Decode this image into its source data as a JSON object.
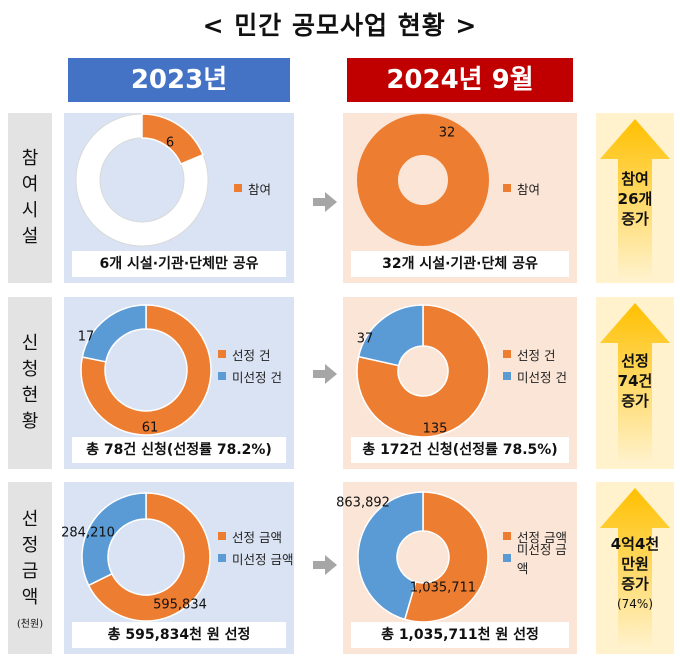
{
  "title": "< 민간 공모사업 현황 >",
  "years": {
    "left": "2023년",
    "right": "2024년 9월"
  },
  "colors": {
    "orange": "#ed7d31",
    "blue": "#5b9bd5",
    "ring_empty": "#ffffff",
    "ring_outline": "#d9d9d9"
  },
  "rows": [
    {
      "label_chars": [
        "참",
        "여",
        "시",
        "설"
      ],
      "unit": ""
    },
    {
      "label_chars": [
        "신",
        "청",
        "현",
        "황"
      ],
      "unit": ""
    },
    {
      "label_chars": [
        "선",
        "정",
        "금",
        "액"
      ],
      "unit": "(천원)"
    }
  ],
  "chart_data": [
    {
      "type": "pie",
      "row": 0,
      "year": "2023년",
      "categories": [
        "참여"
      ],
      "values": [
        6
      ],
      "label_texts": [
        "6"
      ],
      "caption": "6개 시설·기관·단체만 공유",
      "legend": [
        "참여"
      ]
    },
    {
      "type": "pie",
      "row": 0,
      "year": "2024년 9월",
      "categories": [
        "참여"
      ],
      "values": [
        32
      ],
      "label_texts": [
        "32"
      ],
      "caption": "32개 시설·기관·단체 공유",
      "legend": [
        "참여"
      ]
    },
    {
      "type": "pie",
      "row": 1,
      "year": "2023년",
      "categories": [
        "선정 건",
        "미선정 건"
      ],
      "values": [
        61,
        17
      ],
      "label_texts": [
        "61",
        "17"
      ],
      "caption": "총 78건 신청(선정률 78.2%)",
      "legend": [
        "선정 건",
        "미선정 건"
      ]
    },
    {
      "type": "pie",
      "row": 1,
      "year": "2024년 9월",
      "categories": [
        "선정 건",
        "미선정 건"
      ],
      "values": [
        135,
        37
      ],
      "label_texts": [
        "135",
        "37"
      ],
      "caption": "총 172건 신청(선정률 78.5%)",
      "legend": [
        "선정 건",
        "미선정 건"
      ]
    },
    {
      "type": "pie",
      "row": 2,
      "year": "2023년",
      "categories": [
        "선정 금액",
        "미선정 금액"
      ],
      "values": [
        595834,
        284210
      ],
      "label_texts": [
        "595,834",
        "284,210"
      ],
      "caption": "총 595,834천 원 선정",
      "legend": [
        "선정 금액",
        "미선정 금액"
      ]
    },
    {
      "type": "pie",
      "row": 2,
      "year": "2024년 9월",
      "categories": [
        "선정 금액",
        "미선정 금액"
      ],
      "values": [
        1035711,
        863892
      ],
      "label_texts": [
        "1,035,711",
        "863,892"
      ],
      "caption": "총 1,035,711천 원 선정",
      "legend": [
        "선정 금액",
        "미선정 금액"
      ]
    }
  ],
  "increases": [
    {
      "lines": [
        "참여",
        "26개",
        "증가"
      ],
      "note": ""
    },
    {
      "lines": [
        "선정",
        "74건",
        "증가"
      ],
      "note": ""
    },
    {
      "lines": [
        "4억4천",
        "만원",
        "증가"
      ],
      "note": "(74%)"
    }
  ]
}
